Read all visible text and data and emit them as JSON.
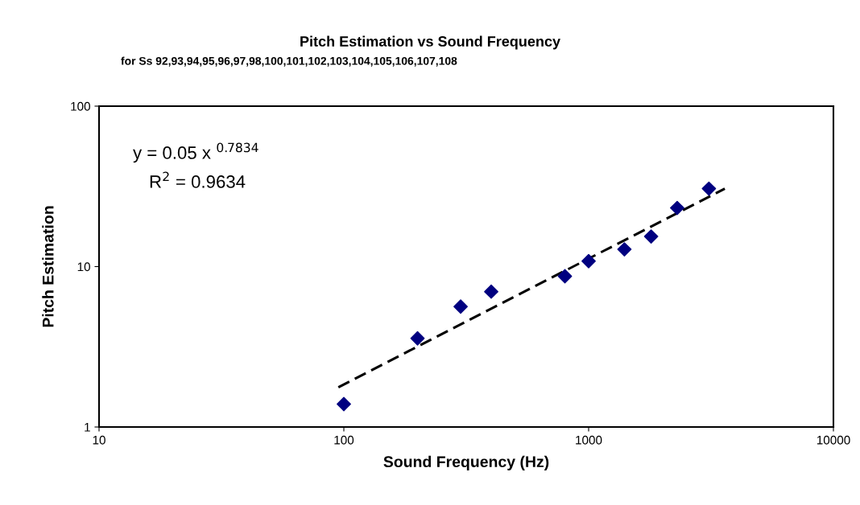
{
  "chart_data": {
    "type": "scatter",
    "title": "Pitch Estimation vs Sound Frequency",
    "subtitle": "for Ss 92,93,94,95,96,97,98,100,101,102,103,104,105,106,107,108",
    "xlabel": "Sound Frequency (Hz)",
    "ylabel": "Pitch Estimation",
    "series": [
      {
        "color": "#000080",
        "marker": "diamond",
        "x": [
          100,
          200,
          300,
          400,
          800,
          1000,
          1400,
          1800,
          2300,
          3100
        ],
        "values": [
          1.39,
          3.57,
          5.63,
          6.98,
          8.71,
          10.8,
          12.8,
          15.4,
          23.2,
          30.6
        ]
      },
      {
        "type": "line",
        "color": "#000000",
        "line_style": "dashed",
        "marker": "none",
        "x": [
          95,
          3600
        ],
        "values": [
          1.77,
          30.6
        ]
      }
    ],
    "log": "xy",
    "xlim": [
      10,
      10000
    ],
    "ylim": [
      1,
      100
    ],
    "xticks": [
      10,
      100,
      1000,
      10000
    ],
    "yticks": [
      1,
      10,
      100
    ],
    "grid": false,
    "legend": false,
    "annotations": [
      "y = 0.05 x $^{0.7834}$",
      "R$^{2}$ = 0.9634"
    ]
  }
}
